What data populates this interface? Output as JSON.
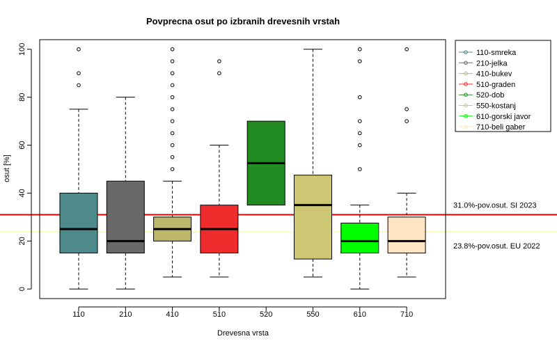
{
  "chart_data": {
    "type": "box",
    "title": "Povprecna osut po izbranih drevesnih vrstah",
    "xlabel": "Drevesna vrsta",
    "ylabel": "osut [%]",
    "ylim": [
      -4,
      104
    ],
    "yticks": [
      "0",
      "20",
      "40",
      "60",
      "80",
      "100"
    ],
    "ytick_values": [
      0,
      20,
      40,
      60,
      80,
      100
    ],
    "legend_position": "top-right-outside",
    "categories": [
      "110",
      "210",
      "410",
      "510",
      "520",
      "550",
      "610",
      "710"
    ],
    "series": [
      {
        "category": "110",
        "legend": "110-smreka",
        "color": "#4e8a8a",
        "whisker_low": 0,
        "q1": 15,
        "median": 25,
        "q3": 40,
        "whisker_high": 75,
        "outliers": [
          85,
          90,
          100
        ]
      },
      {
        "category": "210",
        "legend": "210-jelka",
        "color": "#696969",
        "whisker_low": 0,
        "q1": 15,
        "median": 20,
        "q3": 45,
        "whisker_high": 80,
        "outliers": []
      },
      {
        "category": "410",
        "legend": "410-bukev",
        "color": "#bdb76b",
        "whisker_low": 5,
        "q1": 20,
        "median": 25,
        "q3": 30,
        "whisker_high": 45,
        "outliers": [
          50,
          55,
          60,
          65,
          70,
          75,
          80,
          85,
          90,
          95,
          100
        ]
      },
      {
        "category": "510",
        "legend": "510-graden",
        "color": "#ee2c2c",
        "whisker_low": 5,
        "q1": 15,
        "median": 25,
        "q3": 35,
        "whisker_high": 60,
        "outliers": [
          90,
          95
        ]
      },
      {
        "category": "520",
        "legend": "520-dob",
        "color": "#228b22",
        "whisker_low": 35,
        "q1": 35,
        "median": 52.5,
        "q3": 70,
        "whisker_high": 70,
        "outliers": []
      },
      {
        "category": "550",
        "legend": "550-kostanj",
        "color": "#cdc673",
        "whisker_low": 5,
        "q1": 12.5,
        "median": 35,
        "q3": 47.5,
        "whisker_high": 100,
        "outliers": []
      },
      {
        "category": "610",
        "legend": "610-gorski javor",
        "color": "#00ff00",
        "whisker_low": 0,
        "q1": 15,
        "median": 20,
        "q3": 27.5,
        "whisker_high": 35,
        "outliers": [
          50,
          60,
          65,
          70,
          80,
          95,
          100
        ]
      },
      {
        "category": "710",
        "legend": "710-beli gaber",
        "color": "#ffe4c4",
        "whisker_low": 5,
        "q1": 15,
        "median": 20,
        "q3": 30,
        "whisker_high": 40,
        "outliers": [
          70,
          75,
          100
        ]
      }
    ],
    "reference_lines": [
      {
        "value": 31.0,
        "label": "31.0%-pov.osut. SI 2023",
        "color": "#dd0000"
      },
      {
        "value": 23.8,
        "label": "23.8%-pov.osut. EU 2022",
        "color": "#ffff66"
      }
    ]
  }
}
